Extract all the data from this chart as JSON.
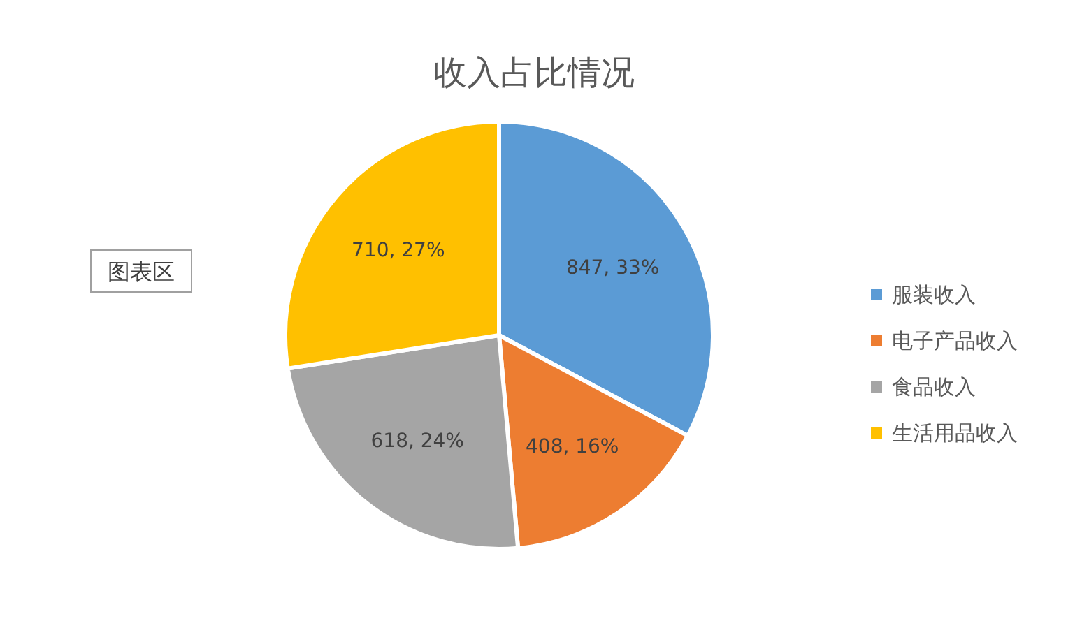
{
  "chart_data": {
    "type": "pie",
    "title": "收入占比情况",
    "categories": [
      "服装收入",
      "电子产品收入",
      "食品收入",
      "生活用品收入"
    ],
    "values": [
      847,
      408,
      618,
      710
    ],
    "colors": [
      "#5b9bd5",
      "#ed7d31",
      "#a5a5a5",
      "#ffc000"
    ],
    "value_labels": [
      "847, 33%",
      "408, 16%",
      "618, 24%",
      "710, 27%"
    ],
    "legend": "right",
    "annotations": [
      "图表区"
    ]
  }
}
